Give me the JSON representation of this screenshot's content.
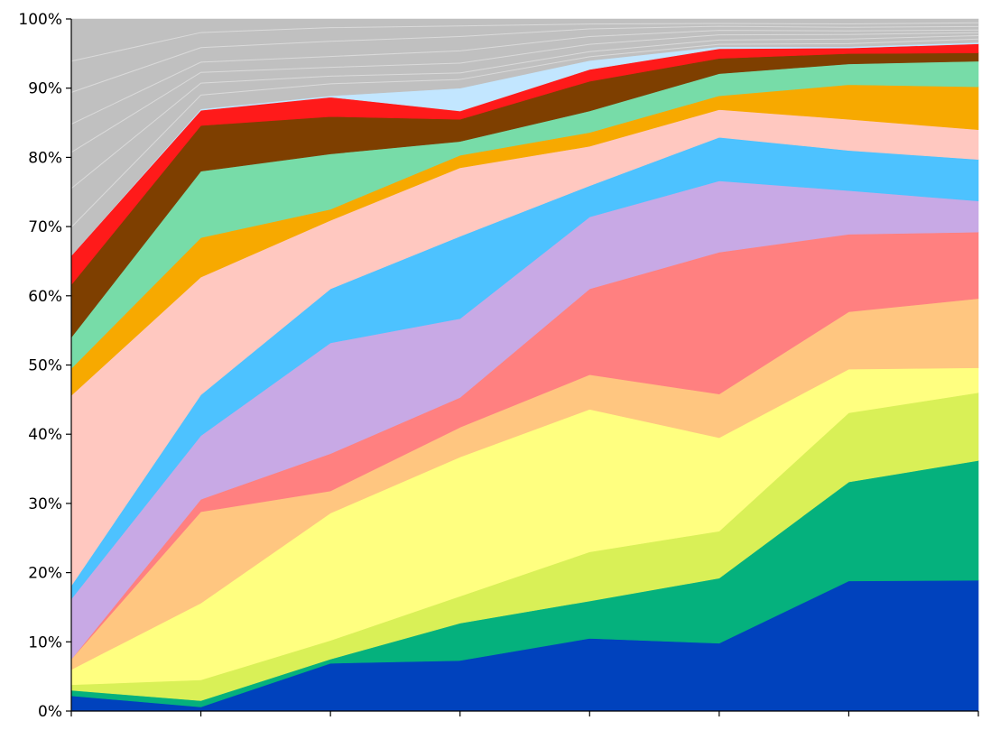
{
  "chart_data": {
    "type": "area",
    "stacked": true,
    "normalized_percent": true,
    "ylim": [
      0,
      100
    ],
    "y_tick_labels": [
      "0%",
      "10%",
      "20%",
      "30%",
      "40%",
      "50%",
      "60%",
      "70%",
      "80%",
      "90%",
      "100%"
    ],
    "x": [
      1,
      2,
      3,
      4,
      5,
      6,
      7,
      8
    ],
    "x_tick_labels": [],
    "grid": false,
    "legend": "none",
    "series": [
      {
        "color": "#0042BD",
        "values": [
          2.2,
          0.6,
          6.9,
          7.3,
          10.5,
          9.8,
          18.8,
          18.9
        ]
      },
      {
        "color": "#05B17D",
        "values": [
          0.8,
          0.9,
          0.6,
          5.4,
          5.4,
          9.4,
          14.3,
          17.3
        ]
      },
      {
        "color": "#D9F057",
        "values": [
          0.8,
          3.0,
          2.7,
          3.9,
          7.1,
          6.8,
          10.0,
          9.8
        ]
      },
      {
        "color": "#FFFF80",
        "values": [
          2.2,
          11.1,
          18.4,
          20.1,
          20.6,
          13.5,
          6.3,
          3.6
        ]
      },
      {
        "color": "#FFC680",
        "values": [
          1.5,
          13.2,
          3.2,
          4.3,
          5.0,
          6.3,
          8.3,
          10.0
        ]
      },
      {
        "color": "#FF8080",
        "values": [
          0.0,
          1.8,
          5.4,
          4.3,
          12.4,
          20.5,
          11.2,
          9.6
        ]
      },
      {
        "color": "#C8A9E5",
        "values": [
          8.7,
          9.2,
          16.0,
          11.4,
          10.4,
          10.3,
          6.3,
          4.5
        ]
      },
      {
        "color": "#4DC2FF",
        "values": [
          1.9,
          5.9,
          7.8,
          11.9,
          4.5,
          6.3,
          5.8,
          6.0
        ]
      },
      {
        "color": "#FFC8C0",
        "values": [
          27.5,
          17.0,
          9.9,
          9.9,
          5.7,
          4.0,
          4.5,
          4.3
        ]
      },
      {
        "color": "#F7A900",
        "values": [
          3.9,
          5.7,
          1.6,
          1.8,
          2.0,
          2.0,
          5.0,
          6.2
        ]
      },
      {
        "color": "#77DCA8",
        "values": [
          4.5,
          9.6,
          8.0,
          2.0,
          3.1,
          3.2,
          3.0,
          3.7
        ]
      },
      {
        "color": "#7E3F00",
        "values": [
          7.6,
          6.6,
          5.4,
          3.2,
          4.3,
          2.2,
          1.5,
          1.2
        ]
      },
      {
        "color": "#FF1A1A",
        "values": [
          4.2,
          2.2,
          2.8,
          1.2,
          1.7,
          1.4,
          0.8,
          1.3
        ]
      },
      {
        "color": "#C2E6FF",
        "values": [
          0.0,
          0.2,
          0.2,
          3.3,
          1.3,
          0.3,
          0.2,
          0.2
        ]
      },
      {
        "color": "#C0C0C0",
        "values": [
          34.2,
          13.0,
          11.1,
          10.0,
          6.0,
          4.0,
          4.0,
          3.4
        ]
      }
    ]
  }
}
